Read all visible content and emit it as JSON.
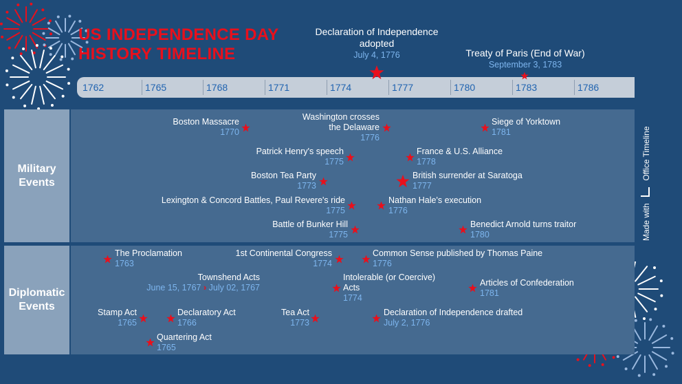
{
  "title": {
    "line1": "US INDEPENDENCE DAY",
    "line2": "HISTORY TIMELINE"
  },
  "colors": {
    "background": "#1f4b78",
    "accent_red": "#e8101c",
    "date_blue": "#7db5ee",
    "lane_label": "#8aa2bb",
    "lane_body": "#456a90",
    "scale_bar": "#c5ced9"
  },
  "scale": {
    "ticks": [
      "1762",
      "1765",
      "1768",
      "1771",
      "1774",
      "1777",
      "1780",
      "1783",
      "1786"
    ]
  },
  "milestones": [
    {
      "title_line1": "Declaration of Independence",
      "title_line2": "adopted",
      "date": "July 4, 1776",
      "icon": "star-icon"
    },
    {
      "title_line1": "Treaty of Paris (End of War)",
      "title_line2": "",
      "date": "September 3, 1783",
      "icon": "star-icon"
    }
  ],
  "lanes": [
    {
      "line1": "Military",
      "line2": "Events"
    },
    {
      "line1": "Diplomatic",
      "line2": "Events"
    }
  ],
  "events": [
    {
      "l1": "Boston Massacre",
      "l2": "",
      "date": "1770"
    },
    {
      "l1": "Washington crosses",
      "l2": "the Delaware",
      "date": "1776"
    },
    {
      "l1": "Siege of Yorktown",
      "l2": "",
      "date": "1781"
    },
    {
      "l1": "Patrick Henry's speech",
      "l2": "",
      "date": "1775"
    },
    {
      "l1": "France & U.S. Alliance",
      "l2": "",
      "date": "1778"
    },
    {
      "l1": "Boston Tea Party",
      "l2": "",
      "date": "1773"
    },
    {
      "l1": "British surrender at Saratoga",
      "l2": "",
      "date": "1777"
    },
    {
      "l1": "Lexington & Concord Battles, Paul Revere's ride",
      "l2": "",
      "date": "1775"
    },
    {
      "l1": "Nathan Hale's execution",
      "l2": "",
      "date": "1776"
    },
    {
      "l1": "Battle of Bunker Hill",
      "l2": "",
      "date": "1775"
    },
    {
      "l1": "Benedict Arnold turns traitor",
      "l2": "",
      "date": "1780"
    },
    {
      "l1": "The Proclamation",
      "l2": "",
      "date": "1763"
    },
    {
      "l1": "1st Continental Congress",
      "l2": "",
      "date": "1774"
    },
    {
      "l1": "Common Sense published by Thomas Paine",
      "l2": "",
      "date": "1776"
    },
    {
      "l1": "Townshend Acts",
      "l2": "",
      "date": "June 15, 1767",
      "date_end": "July 02, 1767"
    },
    {
      "l1": "Intolerable (or Coercive)",
      "l2": "Acts",
      "date": "1774"
    },
    {
      "l1": "Articles of Confederation",
      "l2": "",
      "date": "1781"
    },
    {
      "l1": "Stamp Act",
      "l2": "",
      "date": "1765"
    },
    {
      "l1": "Declaratory Act",
      "l2": "",
      "date": "1766"
    },
    {
      "l1": "Tea Act",
      "l2": "",
      "date": "1773"
    },
    {
      "l1": "Declaration of Independence drafted",
      "l2": "",
      "date": "July 2, 1776"
    },
    {
      "l1": "Quartering Act",
      "l2": "",
      "date": "1765"
    }
  ],
  "watermark": {
    "text": "Made with",
    "brand": "Office Timeline",
    "icon": "office-timeline-logo-icon"
  }
}
